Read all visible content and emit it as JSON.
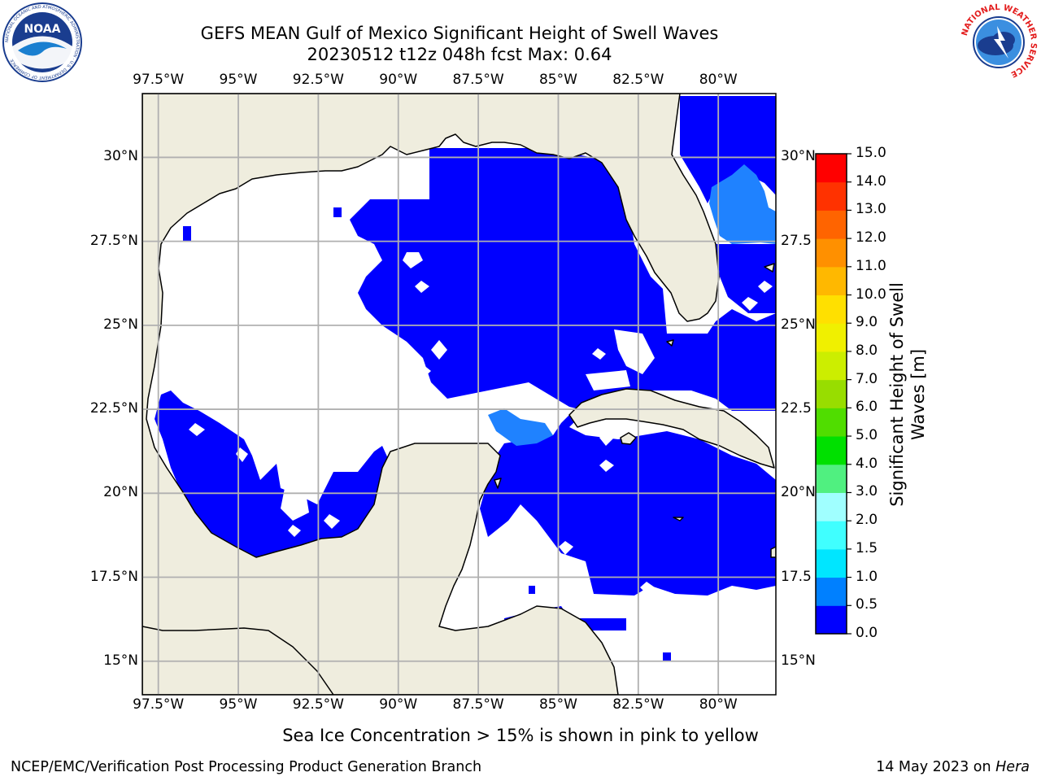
{
  "header": {
    "title_line1": "GEFS MEAN Gulf of Mexico Significant Height of Swell Waves",
    "title_line2": "20230512 t12z 048h fcst   Max: 0.64"
  },
  "map": {
    "lon_ticks": [
      "97.5°W",
      "95°W",
      "92.5°W",
      "90°W",
      "87.5°W",
      "85°W",
      "82.5°W",
      "80°W"
    ],
    "lon_values": [
      -97.5,
      -95,
      -92.5,
      -90,
      -87.5,
      -85,
      -82.5,
      -80
    ],
    "lat_ticks_left": [
      "30°N",
      "27.5°N",
      "25°N",
      "22.5°N",
      "20°N",
      "17.5°N",
      "15°N"
    ],
    "lat_ticks_right": [
      "30°N",
      "27.5",
      "25°N",
      "22.5",
      "20°N",
      "17.5",
      "15°N"
    ],
    "lat_values": [
      30,
      27.5,
      25,
      22.5,
      20,
      17.5,
      15
    ],
    "lon_range": [
      -98,
      -78.2
    ],
    "lat_range": [
      14,
      31.9
    ],
    "colors": {
      "land": "#efedde",
      "swell_0_0.5": "#0000ff",
      "swell_0.5_1.0": "#1f82ff",
      "no_data": "#ffffff",
      "grid": "#b0b0b0"
    }
  },
  "colorbar": {
    "label": "Significant Height of Swell Waves [m]",
    "label_line1": "Significant Height of Swell",
    "label_line2": "Waves [m]",
    "tick_labels": [
      "15.0",
      "14.0",
      "13.0",
      "12.0",
      "11.0",
      "10.0",
      "9.0",
      "8.0",
      "7.0",
      "6.0",
      "5.0",
      "4.0",
      "3.0",
      "2.0",
      "1.5",
      "1.0",
      "0.5",
      "0.0"
    ],
    "bins": [
      0,
      0.5,
      1.0,
      1.5,
      2.0,
      3.0,
      4.0,
      5.0,
      6.0,
      7.0,
      8.0,
      9.0,
      10.0,
      11.0,
      12.0,
      13.0,
      14.0,
      15.0
    ],
    "colors": [
      "#0000ff",
      "#0080ff",
      "#00e6ff",
      "#40ffff",
      "#a0ffff",
      "#50f080",
      "#00e000",
      "#50dd00",
      "#98dd00",
      "#ccee00",
      "#f0f000",
      "#ffe000",
      "#ffb800",
      "#ff9000",
      "#ff6400",
      "#ff3200",
      "#ff0000"
    ]
  },
  "footer": {
    "note": "Sea Ice Concentration > 15% is shown in pink to yellow",
    "credit": "NCEP/EMC/Verification Post Processing Product Generation Branch",
    "date": "14 May 2023 on ",
    "host": "Hera"
  },
  "logos": {
    "noaa_logo_text": "NOAA",
    "noaa_ring_text": "NATIONAL OCEANIC AND ATMOSPHERIC ADMINISTRATION · U.S. DEPARTMENT OF COMMERCE",
    "nws_ring_text": "NATIONAL WEATHER SERVICE"
  }
}
